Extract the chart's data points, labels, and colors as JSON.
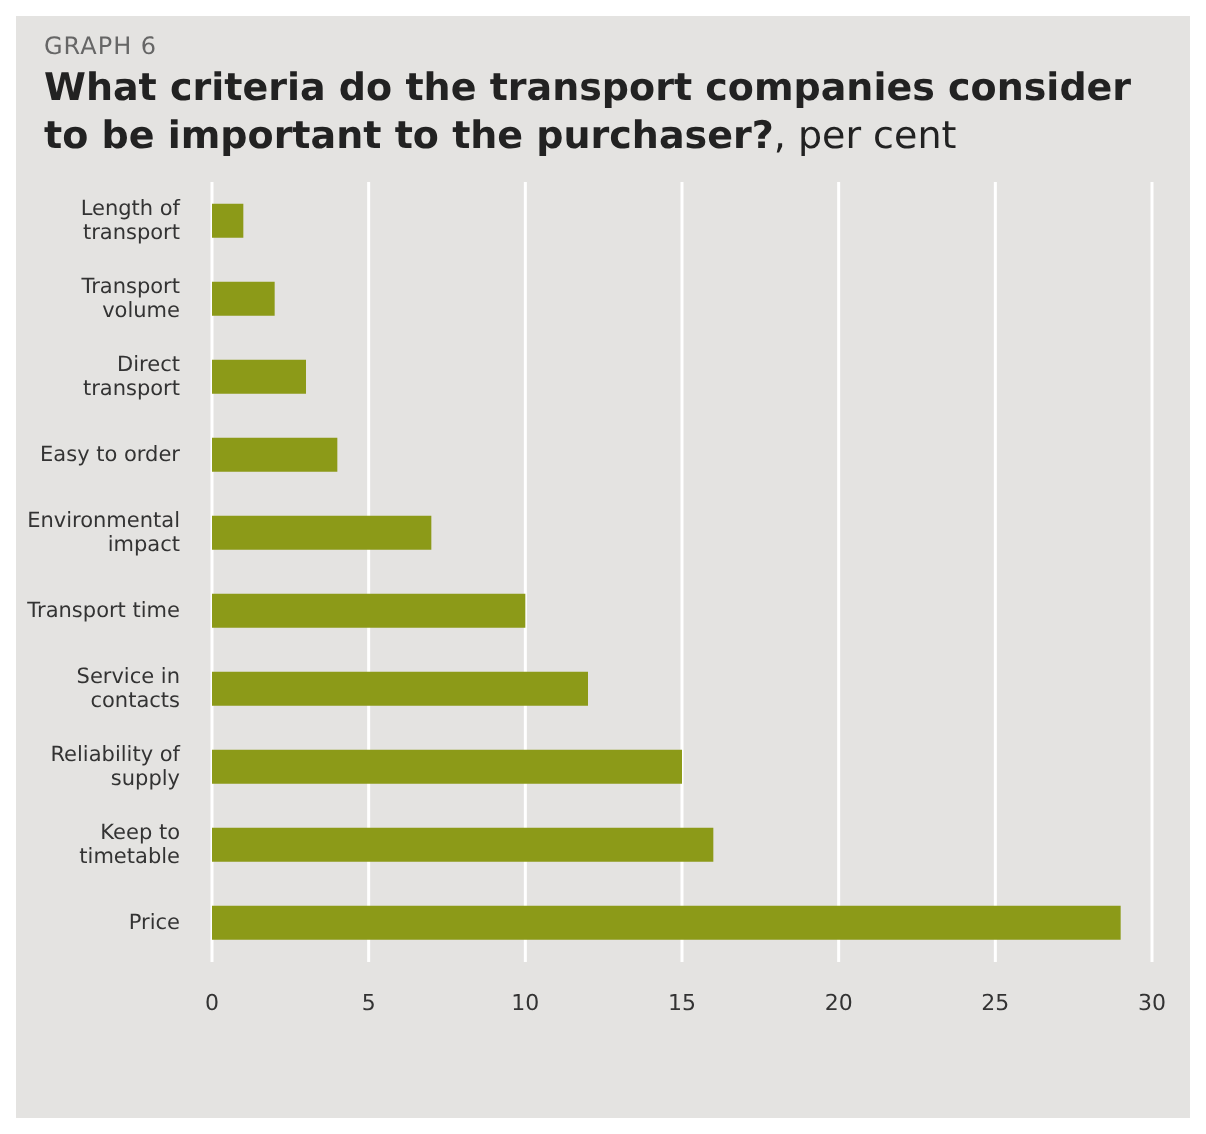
{
  "chart_data": {
    "type": "bar",
    "orientation": "horizontal",
    "title": "What criteria do the transport companies consider to be important to the purchaser?",
    "subtitle": ", per cent",
    "annotations": [
      "GRAPH 6"
    ],
    "categories": [
      "Length of transport",
      "Transport volume",
      "Direct transport",
      "Easy to order",
      "Environmental impact",
      "Transport time",
      "Service in contacts",
      "Reliability of supply",
      "Keep to timetable",
      "Price"
    ],
    "values": [
      1,
      2,
      3,
      4,
      7,
      10,
      12,
      15,
      16,
      29
    ],
    "color": "#8c9a18",
    "xlim": [
      0,
      30
    ],
    "xticks": [
      0,
      5,
      10,
      15,
      20,
      25,
      30
    ],
    "grid": "x",
    "legend": false
  }
}
